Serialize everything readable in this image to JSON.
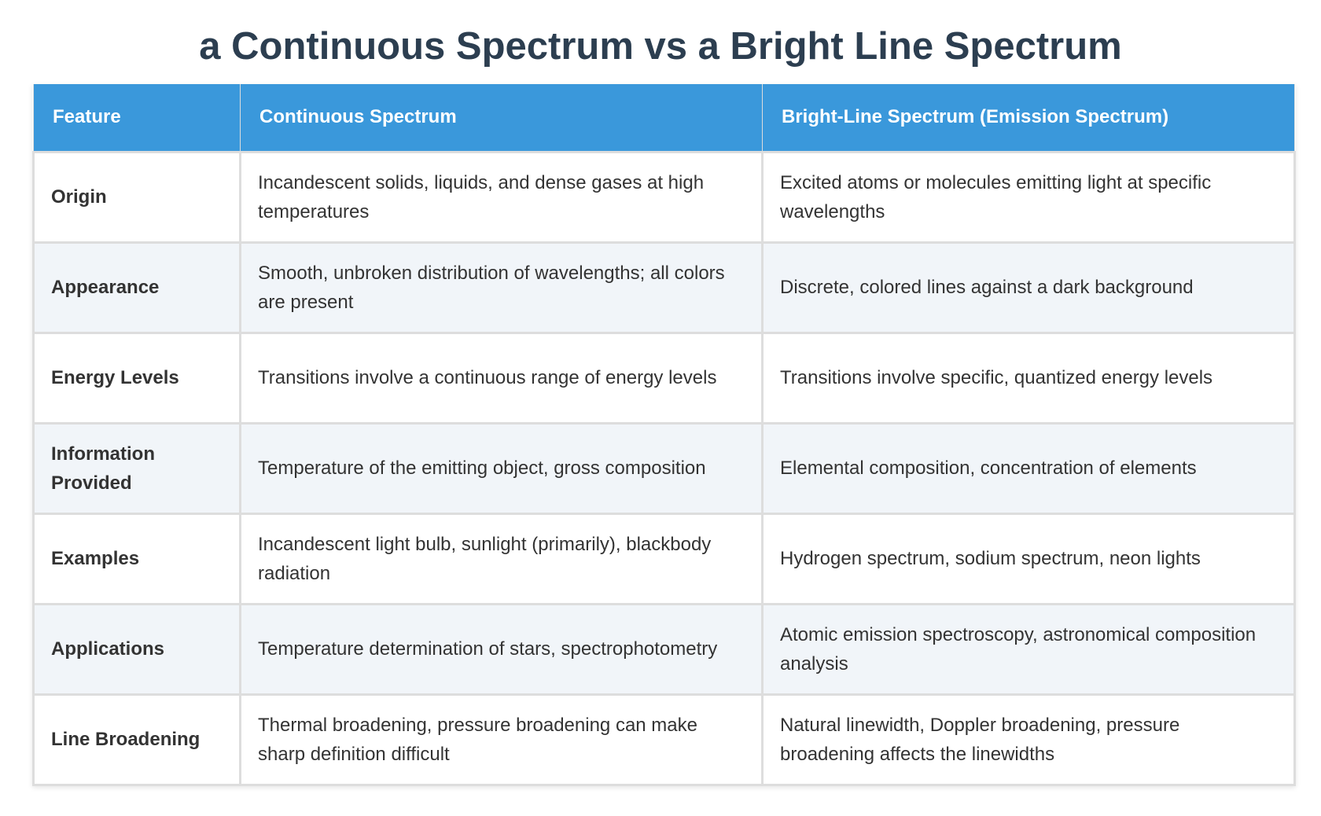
{
  "title": "a Continuous Spectrum vs a Bright Line Spectrum",
  "colors": {
    "title": "#2c3e50",
    "header_bg": "#3a98db",
    "header_text": "#ffffff",
    "row_alt_bg": "#f1f5f9",
    "border": "#dddddd"
  },
  "table": {
    "headers": [
      "Feature",
      "Continuous Spectrum",
      "Bright-Line Spectrum (Emission Spectrum)"
    ],
    "rows": [
      {
        "feature": "Origin",
        "continuous": "Incandescent solids, liquids, and dense gases at high temperatures",
        "bright_line": "Excited atoms or molecules emitting light at specific wavelengths"
      },
      {
        "feature": "Appearance",
        "continuous": "Smooth, unbroken distribution of wavelengths; all colors are present",
        "bright_line": "Discrete, colored lines against a dark background"
      },
      {
        "feature": "Energy Levels",
        "continuous": "Transitions involve a continuous range of energy levels",
        "bright_line": "Transitions involve specific, quantized energy levels"
      },
      {
        "feature": "Information Provided",
        "continuous": "Temperature of the emitting object, gross composition",
        "bright_line": "Elemental composition, concentration of elements"
      },
      {
        "feature": "Examples",
        "continuous": "Incandescent light bulb, sunlight (primarily), blackbody radiation",
        "bright_line": "Hydrogen spectrum, sodium spectrum, neon lights"
      },
      {
        "feature": "Applications",
        "continuous": "Temperature determination of stars, spectrophotometry",
        "bright_line": "Atomic emission spectroscopy, astronomical composition analysis"
      },
      {
        "feature": "Line Broadening",
        "continuous": "Thermal broadening, pressure broadening can make sharp definition difficult",
        "bright_line": "Natural linewidth, Doppler broadening, pressure broadening affects the linewidths"
      }
    ]
  }
}
